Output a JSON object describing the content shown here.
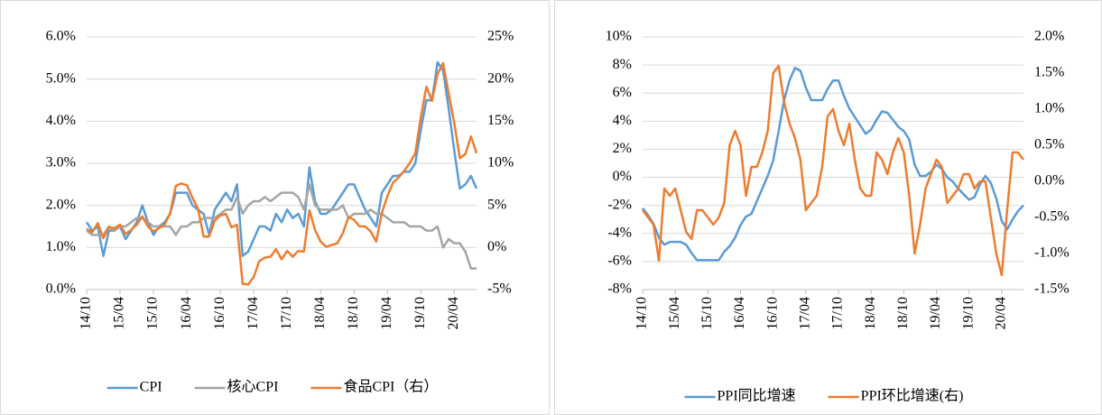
{
  "chart_data": [
    {
      "type": "line",
      "categories": [
        "14/10",
        null,
        null,
        null,
        null,
        null,
        "15/04",
        null,
        null,
        null,
        null,
        null,
        "15/10",
        null,
        null,
        null,
        null,
        null,
        "16/04",
        null,
        null,
        null,
        null,
        null,
        "16/10",
        null,
        null,
        null,
        null,
        null,
        "17/04",
        null,
        null,
        null,
        null,
        null,
        "17/10",
        null,
        null,
        null,
        null,
        null,
        "18/04",
        null,
        null,
        null,
        null,
        null,
        "18/10",
        null,
        null,
        null,
        null,
        null,
        "19/04",
        null,
        null,
        null,
        null,
        null,
        "19/10",
        null,
        null,
        null,
        null,
        null,
        "20/04",
        null,
        null,
        null,
        null
      ],
      "series": [
        {
          "name": "CPI",
          "color": "#5b9bd5",
          "axis": "y",
          "values": [
            1.6,
            1.4,
            1.5,
            0.8,
            1.4,
            1.4,
            1.5,
            1.2,
            1.4,
            1.6,
            2.0,
            1.6,
            1.3,
            1.5,
            1.6,
            1.8,
            2.3,
            2.3,
            2.3,
            2.0,
            1.9,
            1.8,
            1.3,
            1.9,
            2.1,
            2.3,
            2.1,
            2.5,
            0.8,
            0.9,
            1.2,
            1.5,
            1.5,
            1.4,
            1.8,
            1.6,
            1.9,
            1.7,
            1.8,
            1.5,
            2.9,
            2.1,
            1.8,
            1.8,
            1.9,
            2.1,
            2.3,
            2.5,
            2.5,
            2.2,
            1.9,
            1.7,
            1.5,
            2.3,
            2.5,
            2.7,
            2.7,
            2.8,
            2.8,
            3.0,
            3.8,
            4.5,
            4.5,
            5.4,
            5.2,
            4.3,
            3.3,
            2.4,
            2.5,
            2.7,
            2.4
          ]
        },
        {
          "name": "核心CPI",
          "color": "#a5a5a5",
          "axis": "y",
          "values": [
            1.4,
            1.3,
            1.3,
            1.3,
            1.5,
            1.4,
            1.5,
            1.5,
            1.6,
            1.7,
            1.7,
            1.6,
            1.5,
            1.5,
            1.5,
            1.5,
            1.3,
            1.5,
            1.5,
            1.6,
            1.6,
            1.7,
            1.7,
            1.7,
            1.8,
            1.9,
            1.9,
            2.2,
            1.8,
            2.0,
            2.1,
            2.1,
            2.2,
            2.1,
            2.2,
            2.3,
            2.3,
            2.3,
            2.2,
            1.9,
            2.5,
            2.0,
            1.9,
            1.9,
            1.9,
            1.9,
            2.0,
            1.7,
            1.8,
            1.8,
            1.8,
            1.9,
            1.8,
            1.8,
            1.7,
            1.6,
            1.6,
            1.6,
            1.5,
            1.5,
            1.5,
            1.4,
            1.4,
            1.5,
            1.0,
            1.2,
            1.1,
            1.1,
            0.9,
            0.5,
            0.5
          ]
        },
        {
          "name": "食品CPI（右）",
          "color": "#ed7d31",
          "axis": "y2",
          "values": [
            2.2,
            1.8,
            2.9,
            1.1,
            2.4,
            2.3,
            2.7,
            1.6,
            2.1,
            2.7,
            3.7,
            2.5,
            1.9,
            2.3,
            2.7,
            4.1,
            7.3,
            7.6,
            7.4,
            5.9,
            4.6,
            1.3,
            1.3,
            3.2,
            3.8,
            4.0,
            2.4,
            2.7,
            -4.3,
            -4.4,
            -3.5,
            -1.6,
            -1.2,
            -1.1,
            -0.2,
            -1.4,
            -0.4,
            -1.1,
            -0.4,
            -0.5,
            4.4,
            2.1,
            0.7,
            0.1,
            0.3,
            0.5,
            1.7,
            3.6,
            3.3,
            2.5,
            2.5,
            1.9,
            0.7,
            4.1,
            6.1,
            7.7,
            8.3,
            9.1,
            10.0,
            11.2,
            15.5,
            19.1,
            17.4,
            20.6,
            21.9,
            18.3,
            14.8,
            10.6,
            11.1,
            13.2,
            11.2
          ]
        }
      ],
      "ylim": [
        0,
        6
      ],
      "yticks": [
        {
          "value": 0,
          "label": "0.0%"
        },
        {
          "value": 1,
          "label": "1.0%"
        },
        {
          "value": 2,
          "label": "2.0%"
        },
        {
          "value": 3,
          "label": "3.0%"
        },
        {
          "value": 4,
          "label": "4.0%"
        },
        {
          "value": 5,
          "label": "5.0%"
        },
        {
          "value": 6,
          "label": "6.0%"
        }
      ],
      "y2lim": [
        -5,
        25
      ],
      "y2ticks": [
        {
          "value": -5,
          "label": "-5%"
        },
        {
          "value": 0,
          "label": "0%"
        },
        {
          "value": 5,
          "label": "5%"
        },
        {
          "value": 10,
          "label": "10%"
        },
        {
          "value": 15,
          "label": "15%"
        },
        {
          "value": 20,
          "label": "20%"
        },
        {
          "value": 25,
          "label": "25%"
        }
      ],
      "grid": true,
      "legend": "bottom"
    },
    {
      "type": "line",
      "categories": [
        "14/10",
        null,
        null,
        null,
        null,
        null,
        "15/04",
        null,
        null,
        null,
        null,
        null,
        "15/10",
        null,
        null,
        null,
        null,
        null,
        "16/04",
        null,
        null,
        null,
        null,
        null,
        "16/10",
        null,
        null,
        null,
        null,
        null,
        "17/04",
        null,
        null,
        null,
        null,
        null,
        "17/10",
        null,
        null,
        null,
        null,
        null,
        "18/04",
        null,
        null,
        null,
        null,
        null,
        "18/10",
        null,
        null,
        null,
        null,
        null,
        "19/04",
        null,
        null,
        null,
        null,
        null,
        "19/10",
        null,
        null,
        null,
        null,
        null,
        "20/04",
        null,
        null,
        null,
        null
      ],
      "series": [
        {
          "name": "PPI同比增速",
          "color": "#5b9bd5",
          "axis": "y",
          "values": [
            -2.2,
            -2.7,
            -3.3,
            -4.3,
            -4.8,
            -4.6,
            -4.6,
            -4.6,
            -4.8,
            -5.4,
            -5.9,
            -5.9,
            -5.9,
            -5.9,
            -5.9,
            -5.3,
            -4.9,
            -4.3,
            -3.4,
            -2.8,
            -2.6,
            -1.7,
            -0.8,
            0.1,
            1.2,
            3.3,
            5.5,
            6.9,
            7.8,
            7.6,
            6.4,
            5.5,
            5.5,
            5.5,
            6.3,
            6.9,
            6.9,
            5.8,
            4.9,
            4.3,
            3.7,
            3.1,
            3.4,
            4.1,
            4.7,
            4.6,
            4.1,
            3.6,
            3.3,
            2.7,
            0.9,
            0.1,
            0.1,
            0.4,
            0.9,
            0.6,
            0.0,
            -0.3,
            -0.8,
            -1.2,
            -1.6,
            -1.4,
            -0.5,
            0.1,
            -0.4,
            -1.5,
            -3.1,
            -3.7,
            -3.0,
            -2.4,
            -2.0
          ]
        },
        {
          "name": "PPI环比增速(右)",
          "color": "#ed7d31",
          "axis": "y2",
          "values": [
            -0.4,
            -0.5,
            -0.6,
            -1.1,
            -0.1,
            -0.2,
            -0.1,
            -0.4,
            -0.7,
            -0.8,
            -0.4,
            -0.4,
            -0.5,
            -0.6,
            -0.5,
            -0.3,
            0.5,
            0.7,
            0.5,
            -0.2,
            0.2,
            0.2,
            0.4,
            0.7,
            1.5,
            1.6,
            1.1,
            0.8,
            0.6,
            0.3,
            -0.4,
            -0.3,
            -0.2,
            0.2,
            0.9,
            1.0,
            0.7,
            0.5,
            0.8,
            0.3,
            -0.1,
            -0.2,
            -0.2,
            0.4,
            0.3,
            0.1,
            0.4,
            0.6,
            0.4,
            -0.2,
            -1.0,
            -0.6,
            -0.1,
            0.1,
            0.3,
            0.2,
            -0.3,
            -0.2,
            -0.1,
            0.1,
            0.1,
            -0.1,
            0.0,
            0.0,
            -0.5,
            -1.0,
            -1.3,
            -0.4,
            0.4,
            0.4,
            0.3
          ]
        }
      ],
      "ylim": [
        -8,
        10
      ],
      "yticks": [
        {
          "value": -8,
          "label": "-8%"
        },
        {
          "value": -6,
          "label": "-6%"
        },
        {
          "value": -4,
          "label": "-4%"
        },
        {
          "value": -2,
          "label": "-2%"
        },
        {
          "value": 0,
          "label": "0%"
        },
        {
          "value": 2,
          "label": "2%"
        },
        {
          "value": 4,
          "label": "4%"
        },
        {
          "value": 6,
          "label": "6%"
        },
        {
          "value": 8,
          "label": "8%"
        },
        {
          "value": 10,
          "label": "10%"
        }
      ],
      "y2lim": [
        -1.5,
        2.0
      ],
      "y2ticks": [
        {
          "value": -1.5,
          "label": "-1.5%"
        },
        {
          "value": -1.0,
          "label": "-1.0%"
        },
        {
          "value": -0.5,
          "label": "-0.5%"
        },
        {
          "value": 0.0,
          "label": "0.0%"
        },
        {
          "value": 0.5,
          "label": "0.5%"
        },
        {
          "value": 1.0,
          "label": "1.0%"
        },
        {
          "value": 1.5,
          "label": "1.5%"
        },
        {
          "value": 2.0,
          "label": "2.0%"
        }
      ],
      "grid": true,
      "legend": "bottom"
    }
  ]
}
